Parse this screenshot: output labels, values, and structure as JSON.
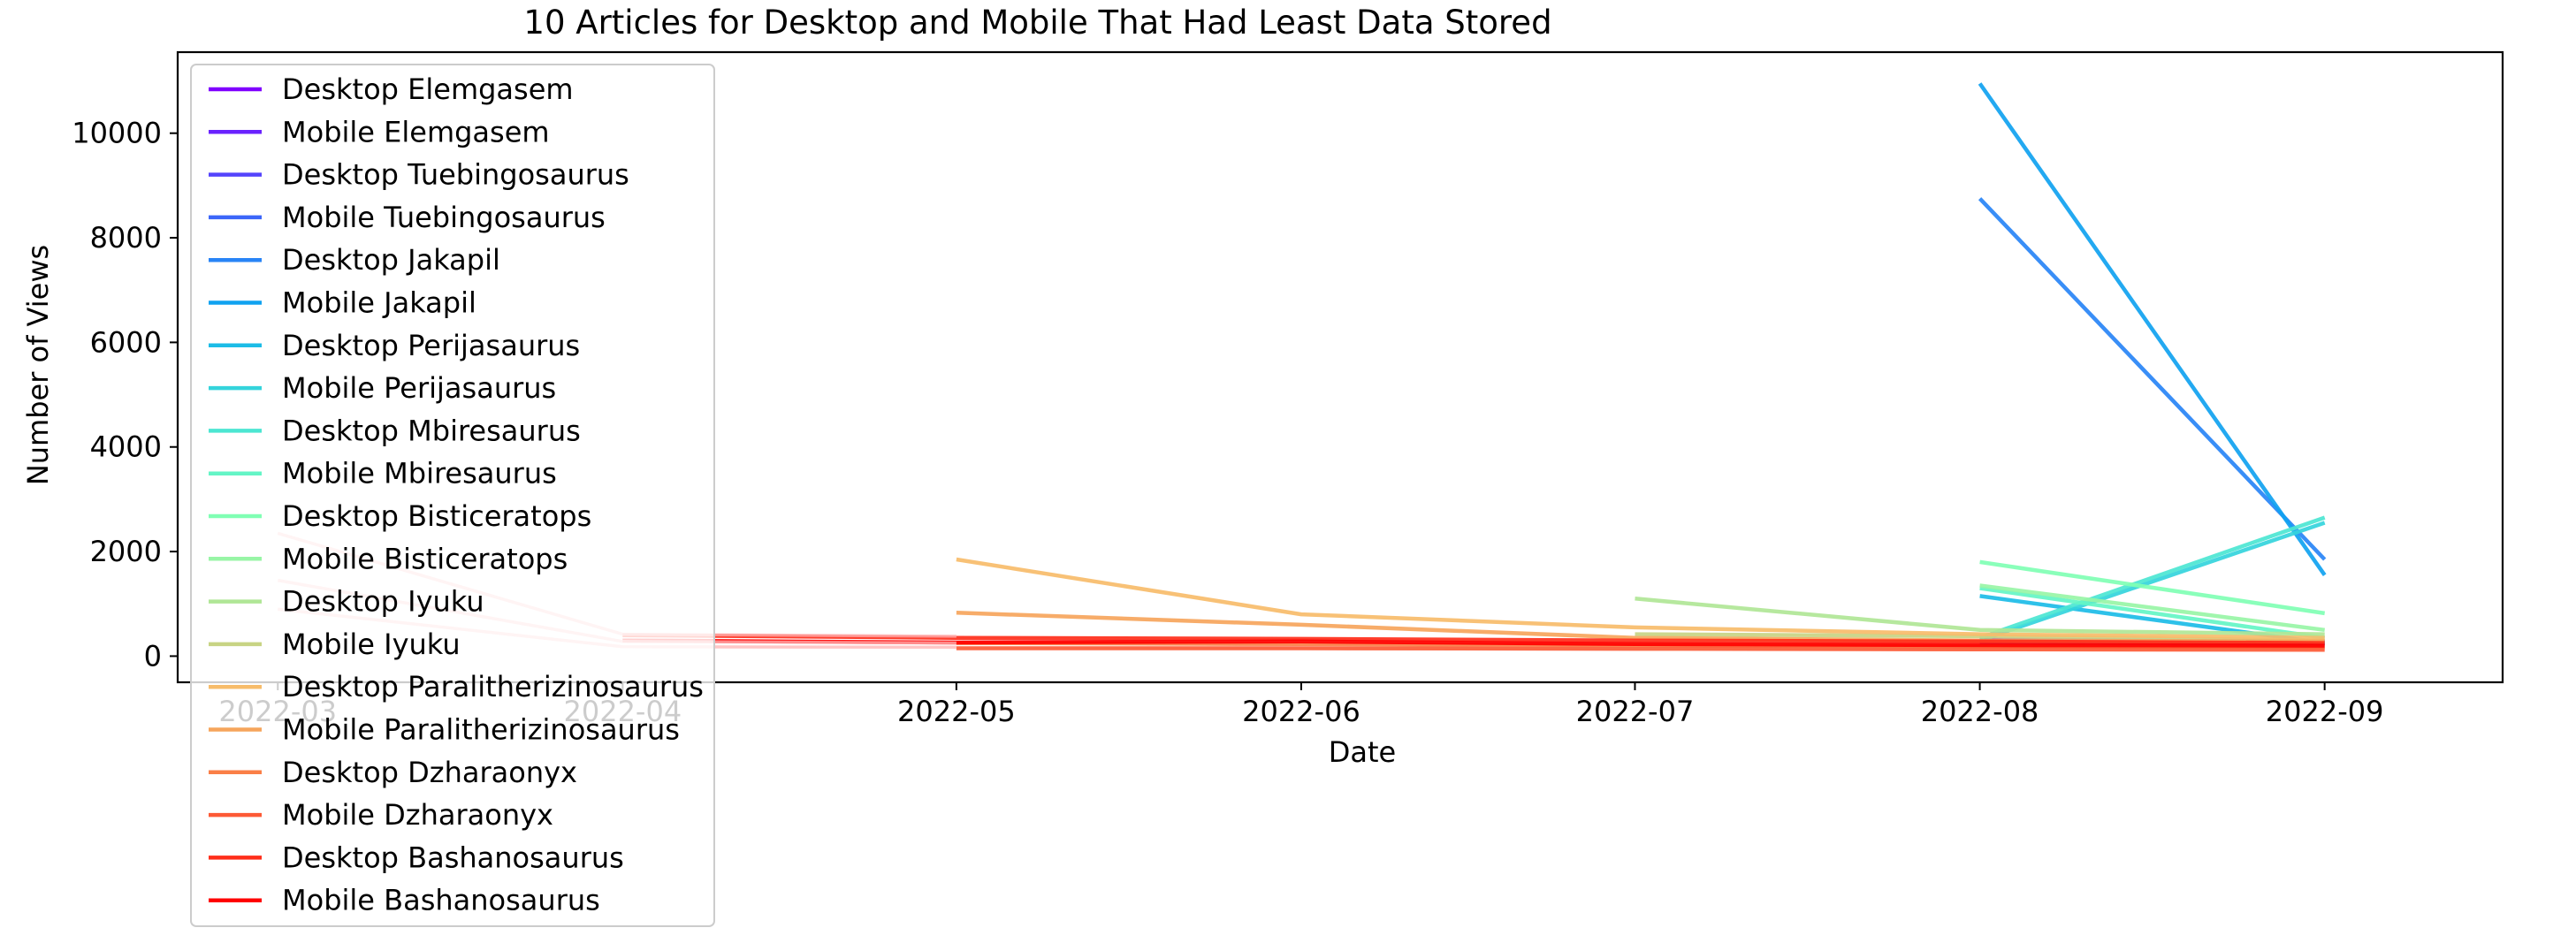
{
  "chart_data": {
    "type": "line",
    "title": "10 Articles for Desktop and Mobile That Had Least Data Stored",
    "xlabel": "Date",
    "ylabel": "Number of  Views",
    "x_ticks": [
      "2022-03",
      "2022-04",
      "2022-05",
      "2022-06",
      "2022-07",
      "2022-08",
      "2022-09"
    ],
    "xlim": [
      "2022-02-20",
      "2022-09-17"
    ],
    "y_ticks": [
      0,
      2000,
      4000,
      6000,
      8000,
      10000
    ],
    "ylim": [
      -500,
      11550
    ],
    "grid": false,
    "legend_position": "upper-left",
    "series": [
      {
        "name": "Desktop Elemgasem",
        "color": "#8000ff",
        "x": [
          "2022-08-01",
          "2022-09-01"
        ],
        "y": [
          320,
          270
        ]
      },
      {
        "name": "Mobile Elemgasem",
        "color": "#6a22fe",
        "x": [
          "2022-08-01",
          "2022-09-01"
        ],
        "y": [
          300,
          280
        ]
      },
      {
        "name": "Desktop Tuebingosaurus",
        "color": "#5444fc",
        "x": [
          "2022-08-01",
          "2022-09-01"
        ],
        "y": [
          280,
          250
        ]
      },
      {
        "name": "Mobile Tuebingosaurus",
        "color": "#3c66f9",
        "x": [
          "2022-08-01",
          "2022-09-01"
        ],
        "y": [
          260,
          240
        ]
      },
      {
        "name": "Desktop Jakapil",
        "color": "#2884f6",
        "x": [
          "2022-08-01",
          "2022-09-01"
        ],
        "y": [
          8750,
          1850
        ]
      },
      {
        "name": "Mobile Jakapil",
        "color": "#10a2f0",
        "x": [
          "2022-08-01",
          "2022-09-01"
        ],
        "y": [
          10950,
          1550
        ]
      },
      {
        "name": "Desktop Perijasaurus",
        "color": "#1cbce7",
        "x": [
          "2022-08-01",
          "2022-09-01"
        ],
        "y": [
          1150,
          250
        ]
      },
      {
        "name": "Mobile Perijasaurus",
        "color": "#34d4dc",
        "x": [
          "2022-08-01",
          "2022-09-01"
        ],
        "y": [
          300,
          2550
        ]
      },
      {
        "name": "Desktop Mbiresaurus",
        "color": "#4ce6d2",
        "x": [
          "2022-08-01",
          "2022-09-01"
        ],
        "y": [
          350,
          2650
        ]
      },
      {
        "name": "Mobile Mbiresaurus",
        "color": "#64f5c6",
        "x": [
          "2022-08-01",
          "2022-09-01"
        ],
        "y": [
          1300,
          350
        ]
      },
      {
        "name": "Desktop Bisticeratops",
        "color": "#80ffb4",
        "x": [
          "2022-08-01",
          "2022-09-01"
        ],
        "y": [
          1800,
          820
        ]
      },
      {
        "name": "Mobile Bisticeratops",
        "color": "#98f5a6",
        "x": [
          "2022-08-01",
          "2022-09-01"
        ],
        "y": [
          1350,
          500
        ]
      },
      {
        "name": "Desktop Iyuku",
        "color": "#b0e696",
        "x": [
          "2022-07-01",
          "2022-08-01",
          "2022-09-01"
        ],
        "y": [
          1100,
          500,
          420
        ]
      },
      {
        "name": "Mobile Iyuku",
        "color": "#c8d484",
        "x": [
          "2022-07-01",
          "2022-08-01",
          "2022-09-01"
        ],
        "y": [
          420,
          380,
          300
        ]
      },
      {
        "name": "Desktop Paralitherizinosaurus",
        "color": "#f7bc6a",
        "x": [
          "2022-05-01",
          "2022-06-01",
          "2022-07-01",
          "2022-08-01",
          "2022-09-01"
        ],
        "y": [
          1850,
          800,
          550,
          420,
          350
        ]
      },
      {
        "name": "Mobile Paralitherizinosaurus",
        "color": "#f6a55c",
        "x": [
          "2022-05-01",
          "2022-06-01",
          "2022-07-01",
          "2022-08-01",
          "2022-09-01"
        ],
        "y": [
          830,
          600,
          350,
          300,
          280
        ]
      },
      {
        "name": "Desktop Dzharaonyx",
        "color": "#fa7f47",
        "x": [
          "2022-05-01",
          "2022-06-01",
          "2022-07-01",
          "2022-08-01",
          "2022-09-01"
        ],
        "y": [
          250,
          230,
          210,
          190,
          170
        ]
      },
      {
        "name": "Mobile Dzharaonyx",
        "color": "#fd5a35",
        "x": [
          "2022-05-01",
          "2022-06-01",
          "2022-07-01",
          "2022-08-01",
          "2022-09-01"
        ],
        "y": [
          150,
          150,
          140,
          130,
          120
        ]
      },
      {
        "name": "Desktop Bashanosaurus",
        "color": "#ff2e1a",
        "x": [
          "2022-04-01",
          "2022-05-01",
          "2022-06-01",
          "2022-07-01",
          "2022-08-01",
          "2022-09-01"
        ],
        "y": [
          400,
          350,
          330,
          300,
          280,
          250
        ]
      },
      {
        "name": "Mobile Bashanosaurus",
        "color": "#ff0000",
        "x": [
          "2022-04-01",
          "2022-05-01",
          "2022-06-01",
          "2022-07-01",
          "2022-08-01",
          "2022-09-01"
        ],
        "y": [
          300,
          260,
          280,
          230,
          210,
          200
        ]
      },
      {
        "name": "",
        "color": "#ffb3b3",
        "x": [
          "2022-03-01",
          "2022-04-01",
          "2022-05-01"
        ],
        "y": [
          2350,
          420,
          380
        ]
      },
      {
        "name": "",
        "color": "#ffb3b3",
        "x": [
          "2022-03-01",
          "2022-04-01",
          "2022-05-01"
        ],
        "y": [
          1450,
          280,
          250
        ]
      },
      {
        "name": "",
        "color": "#ffb3b3",
        "x": [
          "2022-03-01",
          "2022-04-01",
          "2022-05-01"
        ],
        "y": [
          900,
          180,
          170
        ]
      }
    ]
  }
}
